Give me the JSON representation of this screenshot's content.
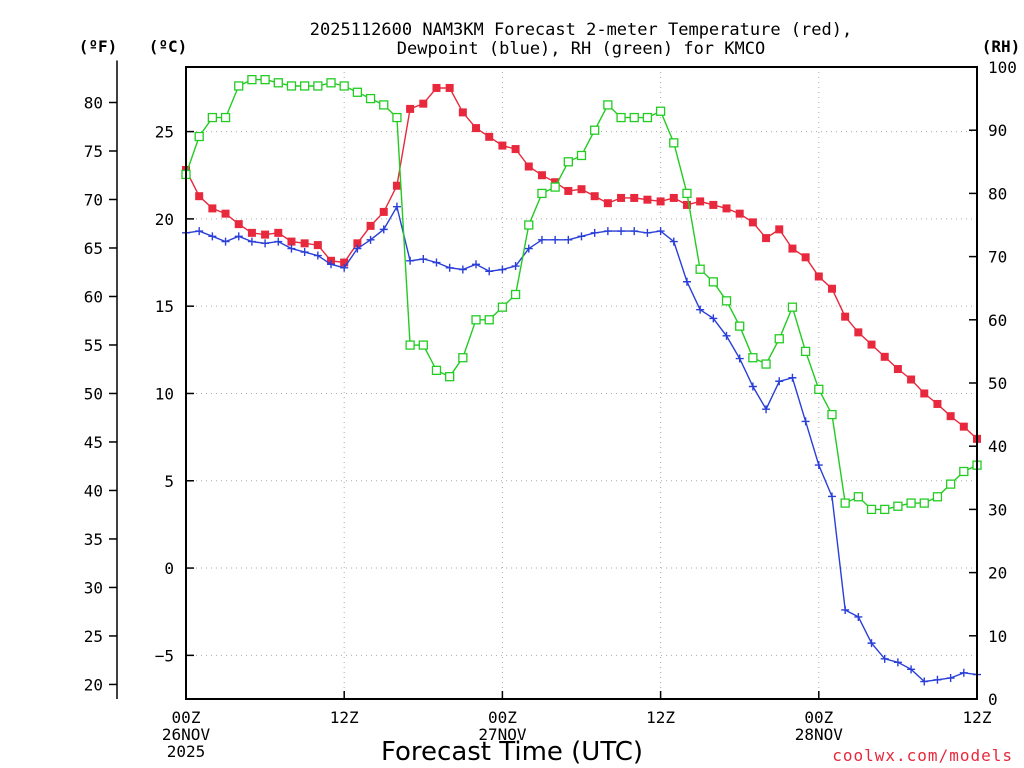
{
  "chart_data": {
    "type": "line",
    "title_line1": "2025112600 NAM3KM Forecast 2-meter Temperature (red),",
    "title_line2": "Dewpoint (blue), RH (green) for KMCO",
    "xlabel": "Forecast Time (UTC)",
    "credit": "coolwx.com/models",
    "unit_f": "(ºF)",
    "unit_c": "(ºC)",
    "unit_rh": "(RH)",
    "x_hours_range": [
      0,
      60
    ],
    "x_ticks": [
      {
        "hour": 0,
        "lines": [
          "00Z",
          "26NOV",
          "2025"
        ]
      },
      {
        "hour": 12,
        "lines": [
          "12Z"
        ]
      },
      {
        "hour": 24,
        "lines": [
          "00Z",
          "27NOV"
        ]
      },
      {
        "hour": 36,
        "lines": [
          "12Z"
        ]
      },
      {
        "hour": 48,
        "lines": [
          "00Z",
          "28NOV"
        ]
      },
      {
        "hour": 60,
        "lines": [
          "12Z"
        ]
      }
    ],
    "celsius_range": [
      -7.5,
      28.7
    ],
    "celsius_ticks": [
      "25",
      "20",
      "15",
      "10",
      "5",
      "0",
      "−5"
    ],
    "fahrenheit_ticks": [
      "80",
      "75",
      "70",
      "65",
      "60",
      "55",
      "50",
      "45",
      "40",
      "35",
      "30",
      "25",
      "20"
    ],
    "rh_range": [
      0,
      100
    ],
    "rh_ticks": [
      "100",
      "90",
      "80",
      "70",
      "60",
      "50",
      "40",
      "30",
      "20",
      "10",
      "0"
    ],
    "series": [
      {
        "name": "Temperature",
        "units": "°C",
        "color": "#e8283c",
        "marker": "filled-square",
        "x": [
          0,
          1,
          2,
          3,
          4,
          5,
          6,
          7,
          8,
          9,
          10,
          11,
          12,
          13,
          14,
          15,
          16,
          17,
          18,
          19,
          20,
          21,
          22,
          23,
          24,
          25,
          26,
          27,
          28,
          29,
          30,
          31,
          32,
          33,
          34,
          35,
          36,
          37,
          38,
          39,
          40,
          41,
          42,
          43,
          44,
          45,
          46,
          47,
          48,
          49,
          50,
          51,
          52,
          53,
          54,
          55,
          56,
          57,
          58,
          59,
          60
        ],
        "values": [
          22.8,
          21.3,
          20.6,
          20.3,
          19.7,
          19.2,
          19.1,
          19.2,
          18.7,
          18.6,
          18.5,
          17.6,
          17.5,
          18.6,
          19.6,
          20.4,
          21.9,
          26.3,
          26.6,
          27.5,
          27.5,
          26.1,
          25.2,
          24.7,
          24.2,
          24.0,
          23.0,
          22.5,
          22.1,
          21.6,
          21.7,
          21.3,
          20.9,
          21.2,
          21.2,
          21.1,
          21.0,
          21.2,
          20.8,
          21.0,
          20.8,
          20.6,
          20.3,
          19.8,
          18.9,
          19.4,
          18.3,
          17.8,
          16.7,
          16.0,
          14.4,
          13.5,
          12.8,
          12.1,
          11.4,
          10.8,
          10.0,
          9.4,
          8.7,
          8.1,
          7.4
        ]
      },
      {
        "name": "Dewpoint",
        "units": "°C",
        "color": "#2a3fd8",
        "marker": "plus",
        "x": [
          0,
          1,
          2,
          3,
          4,
          5,
          6,
          7,
          8,
          9,
          10,
          11,
          12,
          13,
          14,
          15,
          16,
          17,
          18,
          19,
          20,
          21,
          22,
          23,
          24,
          25,
          26,
          27,
          28,
          29,
          30,
          31,
          32,
          33,
          34,
          35,
          36,
          37,
          38,
          39,
          40,
          41,
          42,
          43,
          44,
          45,
          46,
          47,
          48,
          49,
          50,
          51,
          52,
          53,
          54,
          55,
          56,
          57,
          58,
          59,
          60
        ],
        "values": [
          19.2,
          19.3,
          19.0,
          18.7,
          19.0,
          18.7,
          18.6,
          18.7,
          18.3,
          18.1,
          17.9,
          17.4,
          17.2,
          18.3,
          18.8,
          19.4,
          20.7,
          17.6,
          17.7,
          17.5,
          17.2,
          17.1,
          17.4,
          17.0,
          17.1,
          17.3,
          18.3,
          18.8,
          18.8,
          18.8,
          19.0,
          19.2,
          19.3,
          19.3,
          19.3,
          19.2,
          19.3,
          18.7,
          16.4,
          14.8,
          14.3,
          13.3,
          12.0,
          10.4,
          9.1,
          10.7,
          10.9,
          8.4,
          5.9,
          4.1,
          -2.4,
          -2.8,
          -4.3,
          -5.2,
          -5.4,
          -5.8,
          -6.5,
          -6.4,
          -6.3,
          -6.0,
          -6.1
        ]
      },
      {
        "name": "Relative Humidity",
        "units": "%",
        "color": "#22cc22",
        "marker": "open-square",
        "x": [
          0,
          1,
          2,
          3,
          4,
          5,
          6,
          7,
          8,
          9,
          10,
          11,
          12,
          13,
          14,
          15,
          16,
          17,
          18,
          19,
          20,
          21,
          22,
          23,
          24,
          25,
          26,
          27,
          28,
          29,
          30,
          31,
          32,
          33,
          34,
          35,
          36,
          37,
          38,
          39,
          40,
          41,
          42,
          43,
          44,
          45,
          46,
          47,
          48,
          49,
          50,
          51,
          52,
          53,
          54,
          55,
          56,
          57,
          58,
          59,
          60
        ],
        "values": [
          83,
          89,
          92,
          92,
          97,
          98,
          98,
          97.5,
          97,
          97,
          97,
          97.5,
          97,
          96,
          95,
          94,
          92,
          56,
          56,
          52,
          51,
          54,
          60,
          60,
          62,
          64,
          75,
          80,
          81,
          85,
          86,
          90,
          94,
          92,
          92,
          92,
          93,
          88,
          80,
          68,
          66,
          63,
          59,
          54,
          53,
          57,
          62,
          55,
          49,
          45,
          31,
          32,
          30,
          30,
          30.5,
          31,
          31,
          32,
          34,
          36,
          37
        ]
      }
    ]
  }
}
